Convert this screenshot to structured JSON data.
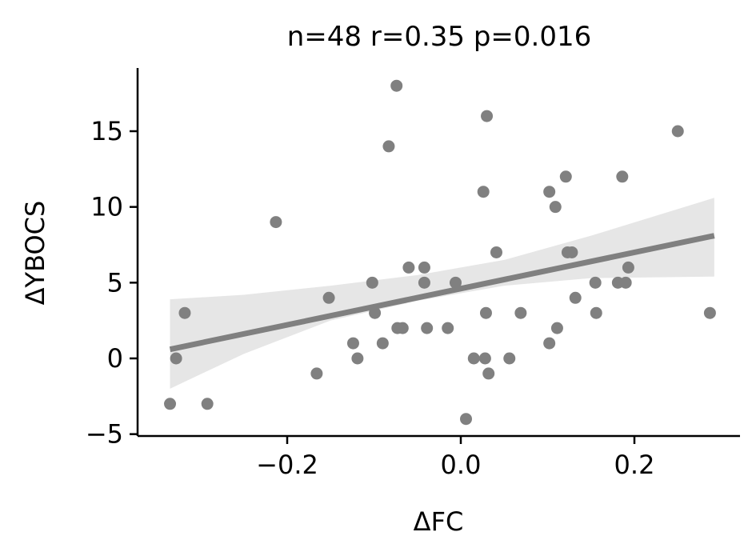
{
  "chart_data": {
    "type": "scatter",
    "title": "n=48  r=0.35  p=0.016",
    "xlabel": "ΔFC",
    "ylabel": "ΔYBOCS",
    "xlim": [
      -0.36,
      0.32
    ],
    "ylim": [
      -5,
      19
    ],
    "xticks": [
      -0.2,
      0.0,
      0.2
    ],
    "xtick_labels": [
      "−0.2",
      "0.0",
      "0.2"
    ],
    "yticks": [
      -5,
      0,
      5,
      10,
      15
    ],
    "ytick_labels": [
      "−5",
      "0",
      "5",
      "10",
      "15"
    ],
    "grid": false,
    "points": [
      {
        "x": -0.335,
        "y": -3
      },
      {
        "x": -0.328,
        "y": 0
      },
      {
        "x": -0.318,
        "y": 3
      },
      {
        "x": -0.292,
        "y": -3
      },
      {
        "x": -0.213,
        "y": 9
      },
      {
        "x": -0.166,
        "y": -1
      },
      {
        "x": -0.152,
        "y": 4
      },
      {
        "x": -0.124,
        "y": 1
      },
      {
        "x": -0.119,
        "y": 0
      },
      {
        "x": -0.102,
        "y": 5
      },
      {
        "x": -0.099,
        "y": 3
      },
      {
        "x": -0.09,
        "y": 1
      },
      {
        "x": -0.083,
        "y": 14
      },
      {
        "x": -0.074,
        "y": 18
      },
      {
        "x": -0.073,
        "y": 2
      },
      {
        "x": -0.067,
        "y": 2
      },
      {
        "x": -0.06,
        "y": 6
      },
      {
        "x": -0.042,
        "y": 6
      },
      {
        "x": -0.042,
        "y": 5
      },
      {
        "x": -0.039,
        "y": 2
      },
      {
        "x": -0.015,
        "y": 2
      },
      {
        "x": -0.006,
        "y": 5
      },
      {
        "x": 0.006,
        "y": -4
      },
      {
        "x": 0.015,
        "y": 0
      },
      {
        "x": 0.026,
        "y": 11
      },
      {
        "x": 0.028,
        "y": 0
      },
      {
        "x": 0.029,
        "y": 3
      },
      {
        "x": 0.03,
        "y": 16
      },
      {
        "x": 0.032,
        "y": -1
      },
      {
        "x": 0.041,
        "y": 7
      },
      {
        "x": 0.056,
        "y": 0
      },
      {
        "x": 0.069,
        "y": 3
      },
      {
        "x": 0.102,
        "y": 11
      },
      {
        "x": 0.102,
        "y": 1
      },
      {
        "x": 0.109,
        "y": 10
      },
      {
        "x": 0.111,
        "y": 2
      },
      {
        "x": 0.121,
        "y": 12
      },
      {
        "x": 0.123,
        "y": 7
      },
      {
        "x": 0.128,
        "y": 7
      },
      {
        "x": 0.132,
        "y": 4
      },
      {
        "x": 0.155,
        "y": 5
      },
      {
        "x": 0.156,
        "y": 3
      },
      {
        "x": 0.181,
        "y": 5
      },
      {
        "x": 0.186,
        "y": 12
      },
      {
        "x": 0.19,
        "y": 5
      },
      {
        "x": 0.193,
        "y": 6
      },
      {
        "x": 0.25,
        "y": 15
      },
      {
        "x": 0.287,
        "y": 3
      }
    ],
    "regression": {
      "x_range": [
        -0.335,
        0.292
      ],
      "y_start": 0.6,
      "y_end": 8.1,
      "ci_lower": [
        {
          "x": -0.335,
          "y": -2.0
        },
        {
          "x": -0.25,
          "y": 0.3
        },
        {
          "x": -0.15,
          "y": 2.5
        },
        {
          "x": -0.05,
          "y": 3.8
        },
        {
          "x": 0.05,
          "y": 4.8
        },
        {
          "x": 0.15,
          "y": 5.3
        },
        {
          "x": 0.292,
          "y": 5.4
        }
      ],
      "ci_upper": [
        {
          "x": -0.335,
          "y": 3.9
        },
        {
          "x": -0.25,
          "y": 4.2
        },
        {
          "x": -0.15,
          "y": 4.8
        },
        {
          "x": -0.05,
          "y": 5.5
        },
        {
          "x": 0.05,
          "y": 6.5
        },
        {
          "x": 0.15,
          "y": 8.1
        },
        {
          "x": 0.292,
          "y": 10.6
        }
      ]
    },
    "colors": {
      "points": "#808080",
      "line": "#808080",
      "ci_band": "#e6e6e6",
      "axes": "#000000"
    }
  }
}
